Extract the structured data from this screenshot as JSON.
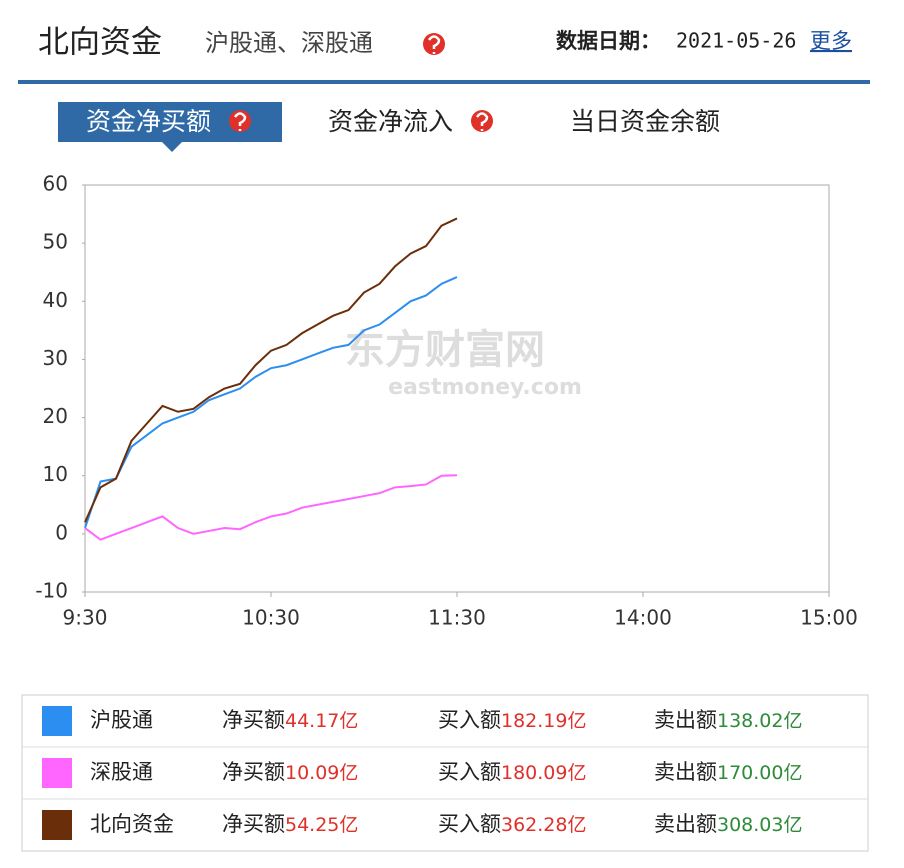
{
  "header": {
    "title": "北向资金",
    "subtitle": "沪股通、深股通",
    "date_label": "数据日期：",
    "date": "2021-05-26",
    "more": "更多"
  },
  "tabs": [
    "资金净买额",
    "资金净流入",
    "当日资金余额"
  ],
  "watermark": [
    "东方财富网",
    "eastmoney.com"
  ],
  "chart_data": {
    "type": "line",
    "x": [
      0,
      5,
      10,
      15,
      20,
      25,
      30,
      35,
      40,
      45,
      50,
      55,
      60,
      65,
      70,
      75,
      80,
      85,
      90,
      95,
      100,
      105,
      110,
      115,
      120
    ],
    "xlim": [
      0,
      240
    ],
    "xticks": [
      {
        "value": 0,
        "label": "9:30"
      },
      {
        "value": 60,
        "label": "10:30"
      },
      {
        "value": 120,
        "label": "11:30"
      },
      {
        "value": 180,
        "label": "14:00"
      },
      {
        "value": 240,
        "label": "15:00"
      }
    ],
    "ylim": [
      -10,
      60
    ],
    "yticks": [
      -10,
      0,
      10,
      20,
      30,
      40,
      50,
      60
    ],
    "series": [
      {
        "name": "沪股通",
        "color": "#2b8ef0",
        "values": [
          1,
          9,
          9.5,
          15,
          17,
          19,
          20,
          21,
          23,
          24,
          25,
          27,
          28.5,
          29,
          30,
          31,
          32,
          32.5,
          35,
          36,
          38,
          40,
          41,
          43,
          44.17
        ]
      },
      {
        "name": "深股通",
        "color": "#ff66ff",
        "values": [
          1,
          -1,
          0,
          1,
          2,
          3,
          1,
          0,
          0.5,
          1,
          0.8,
          2,
          3,
          3.5,
          4.5,
          5,
          5.5,
          6,
          6.5,
          7,
          8,
          8.2,
          8.5,
          10,
          10.09
        ]
      },
      {
        "name": "北向资金",
        "color": "#6b2e0a",
        "values": [
          2,
          8,
          9.5,
          16,
          19,
          22,
          21,
          21.5,
          23.5,
          25,
          25.8,
          29,
          31.5,
          32.5,
          34.5,
          36,
          37.5,
          38.5,
          41.5,
          43,
          46,
          48.2,
          49.5,
          53,
          54.25
        ]
      }
    ]
  },
  "table": {
    "labels": [
      "净买额",
      "买入额",
      "卖出额"
    ],
    "rows": [
      [
        "44.17亿",
        "182.19亿",
        "138.02亿"
      ],
      [
        "10.09亿",
        "180.09亿",
        "170.00亿"
      ],
      [
        "54.25亿",
        "362.28亿",
        "308.03亿"
      ]
    ]
  }
}
